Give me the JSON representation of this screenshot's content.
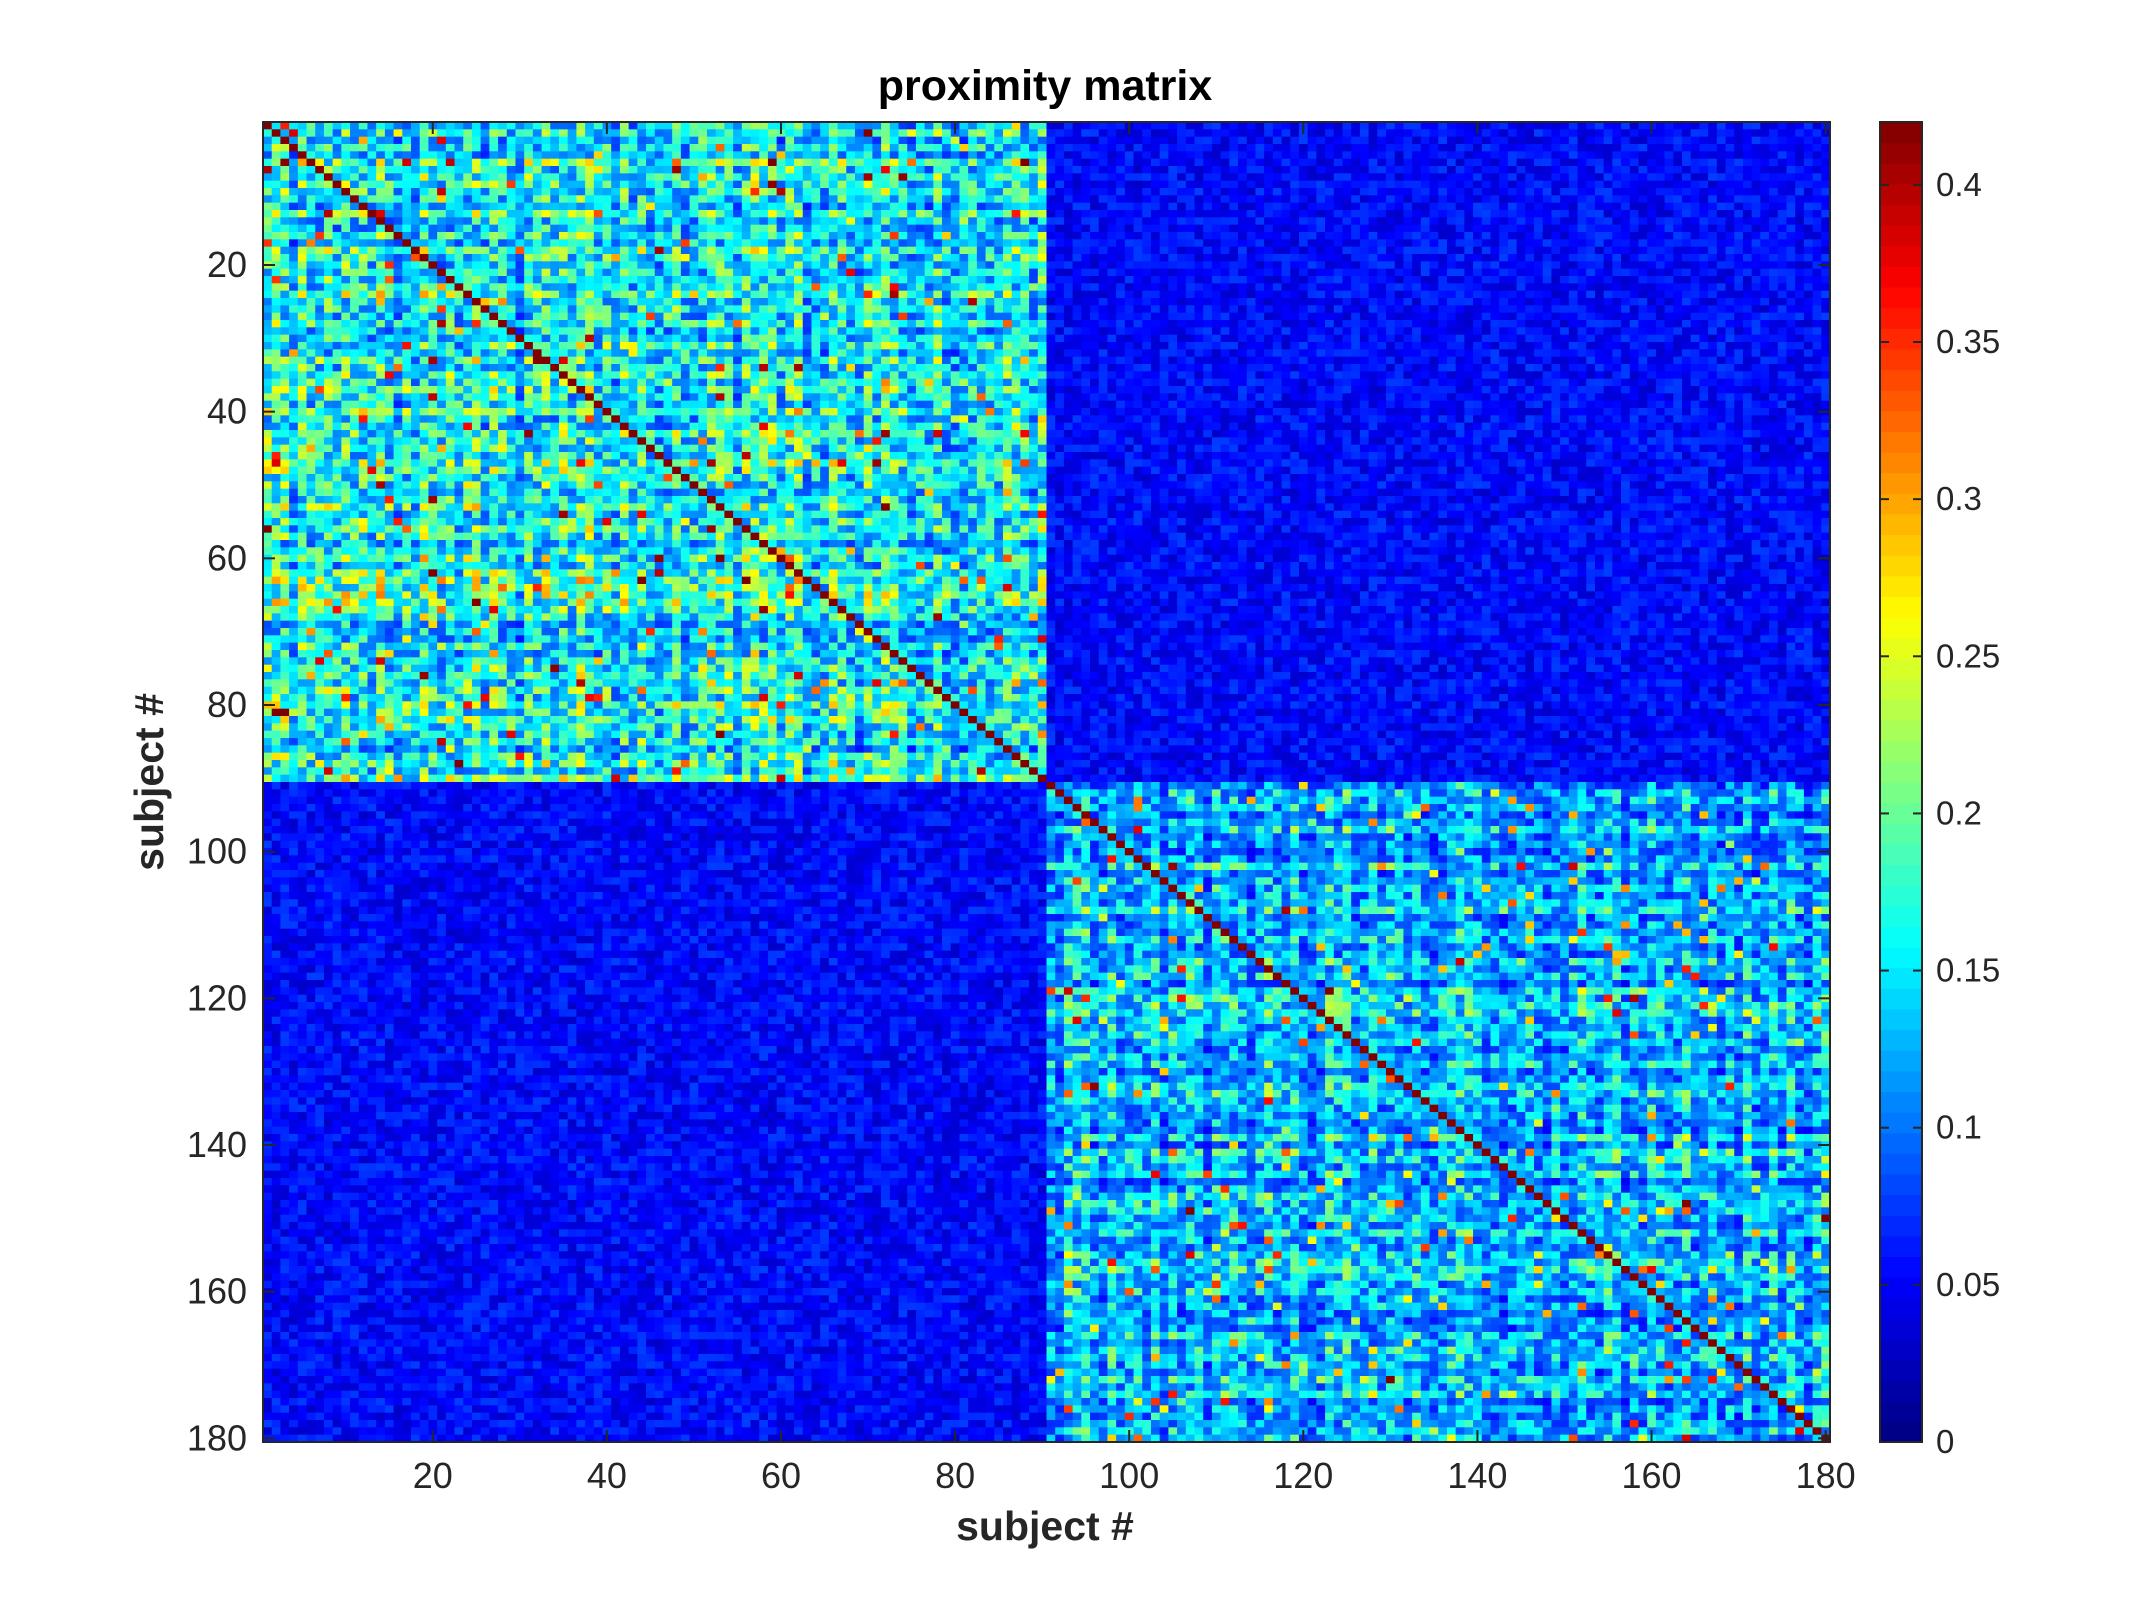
{
  "chart_data": {
    "type": "heatmap",
    "title": "proximity matrix",
    "xlabel": "subject #",
    "ylabel": "subject #",
    "n_subjects": 180,
    "xlim": [
      1,
      180
    ],
    "ylim": [
      1,
      180
    ],
    "x_ticks": [
      20,
      40,
      60,
      80,
      100,
      120,
      140,
      160,
      180
    ],
    "y_ticks": [
      20,
      40,
      60,
      80,
      100,
      120,
      140,
      160,
      180
    ],
    "y_axis_direction": "reverse",
    "colormap": "jet",
    "colorbar": {
      "range": [
        0,
        0.42
      ],
      "ticks": [
        0,
        0.05,
        0.1,
        0.15,
        0.2,
        0.25,
        0.3,
        0.35,
        0.4
      ],
      "tick_labels": [
        "0",
        "0.05",
        "0.1",
        "0.15",
        "0.2",
        "0.25",
        "0.3",
        "0.35",
        "0.4"
      ],
      "placement": "right"
    },
    "blocks": [
      {
        "rows": [
          1,
          90
        ],
        "cols": [
          1,
          90
        ],
        "typical_value": 0.16
      },
      {
        "rows": [
          91,
          180
        ],
        "cols": [
          91,
          180
        ],
        "typical_value": 0.13
      },
      {
        "rows": [
          1,
          90
        ],
        "cols": [
          91,
          180
        ],
        "typical_value": 0.06
      },
      {
        "rows": [
          91,
          180
        ],
        "cols": [
          1,
          90
        ],
        "typical_value": 0.06
      }
    ],
    "diagonal_value": 0.42
  }
}
